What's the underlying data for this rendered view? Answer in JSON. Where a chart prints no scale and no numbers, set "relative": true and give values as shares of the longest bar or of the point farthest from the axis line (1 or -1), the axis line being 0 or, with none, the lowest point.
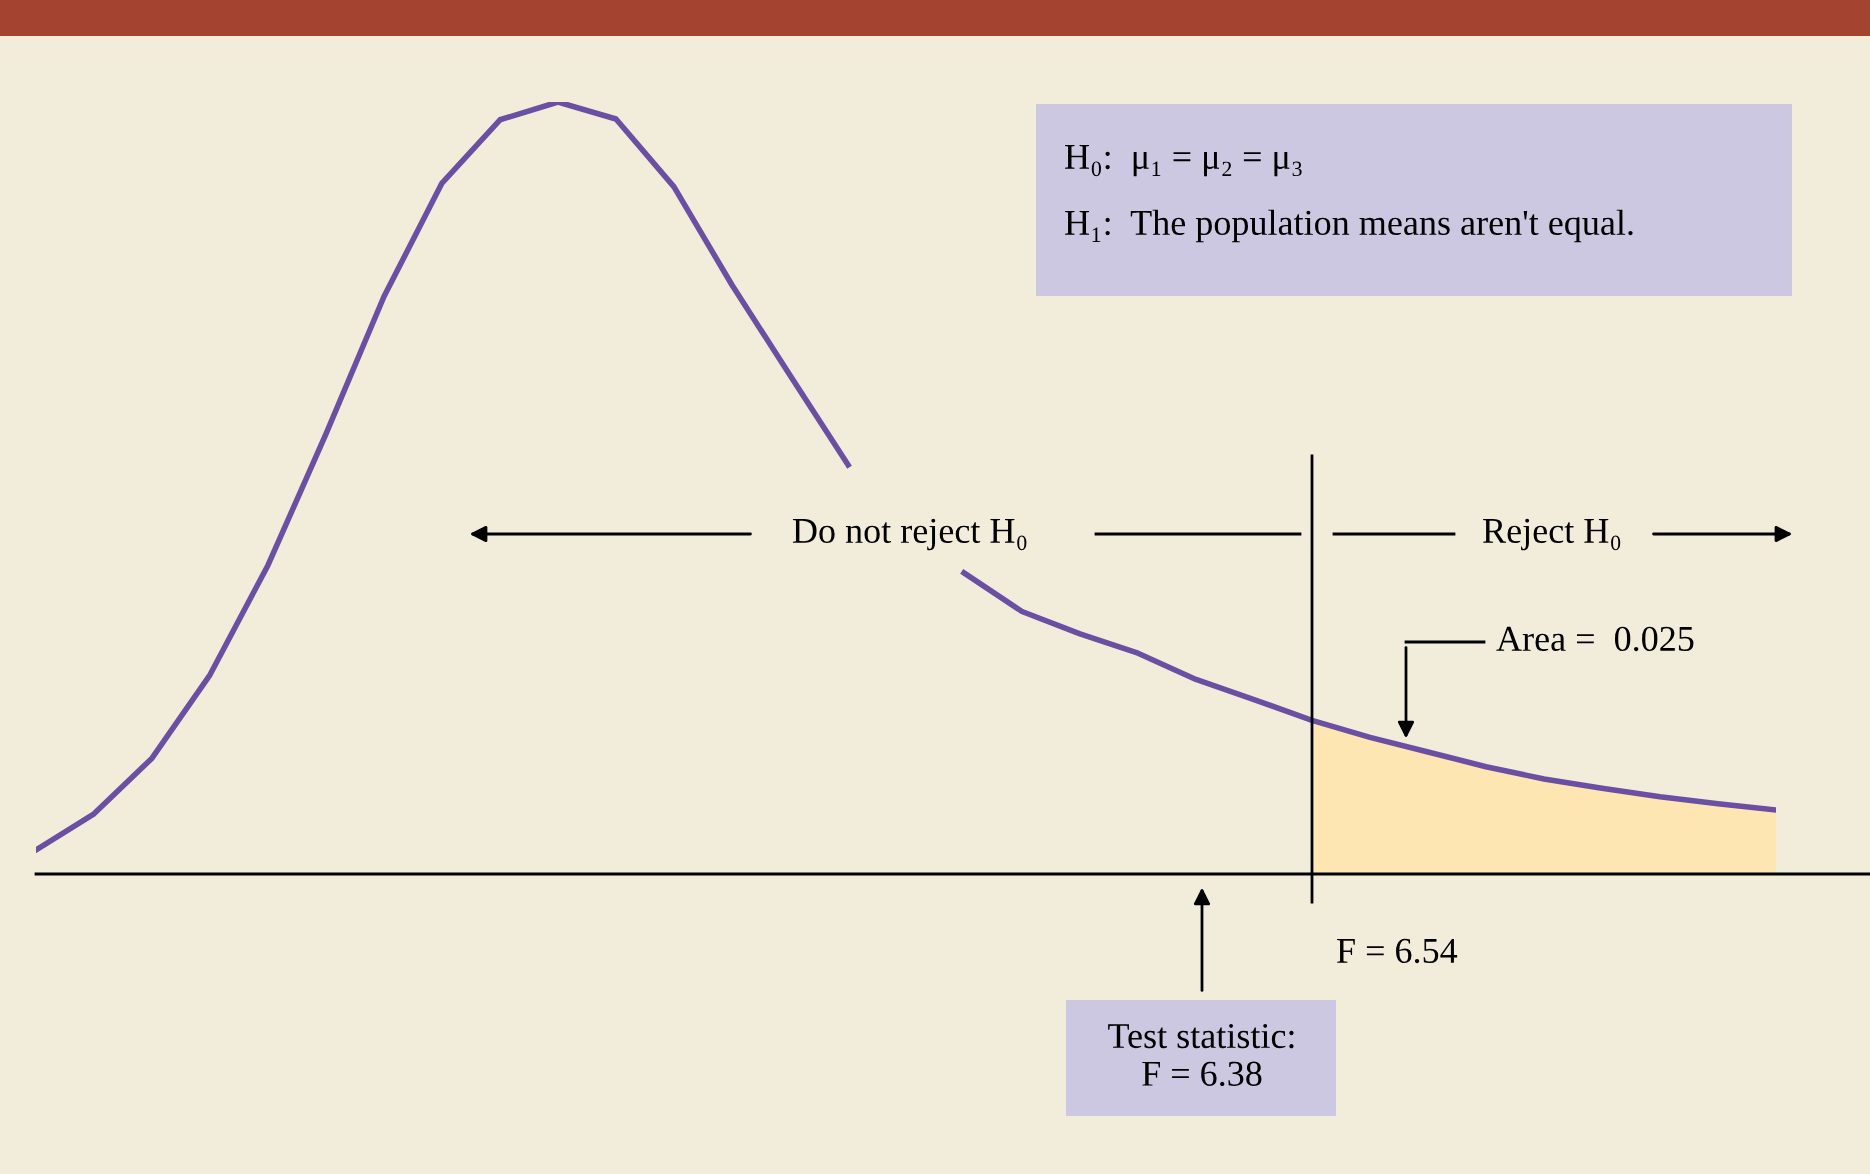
{
  "chart_data": {
    "type": "line",
    "relative": true,
    "marker": "none",
    "line_style": "solid",
    "categories": [
      null,
      null,
      null,
      null,
      null,
      null,
      null,
      null,
      null,
      null,
      null,
      null,
      null,
      null,
      null,
      null,
      null,
      null,
      null,
      null,
      null,
      null,
      null,
      null,
      null,
      null,
      null,
      null,
      null,
      null,
      null
    ],
    "series": [
      {
        "type": "area",
        "color": "#fde6b2",
        "values": [
          null,
          null,
          null,
          null,
          null,
          null,
          null,
          null,
          null,
          null,
          null,
          null,
          null,
          null,
          null,
          null,
          null,
          null,
          null,
          null,
          null,
          null,
          0.199,
          0.177,
          0.158,
          0.139,
          0.123,
          0.111,
          0.1,
          0.091,
          0.083
        ]
      },
      {
        "color": "#6a4fa3",
        "values": [
          0.031,
          0.078,
          0.15,
          0.258,
          0.4,
          0.57,
          0.748,
          0.895,
          0.977,
          1,
          0.978,
          0.89,
          0.763,
          0.646,
          0.53,
          null,
          0.39,
          0.34,
          0.311,
          0.286,
          0.252,
          0.226,
          0.199,
          0.177,
          0.158,
          0.139,
          0.123,
          0.111,
          0.1,
          0.091,
          0.083
        ]
      }
    ],
    "annotations": [
      "H₀:  μ₁ = μ₂ = μ₃",
      "H₁:  The population means aren't equal.",
      "Do not reject H₀",
      "Reject H₀",
      "Area =  0.025",
      "Test statistic:\nF = 6.38",
      "F = 6.54"
    ]
  }
}
